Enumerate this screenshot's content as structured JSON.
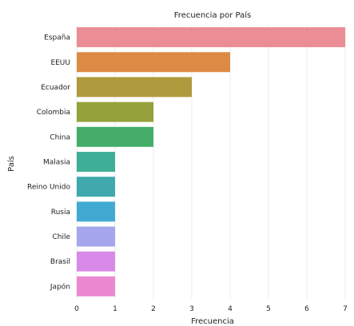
{
  "chart_data": {
    "type": "bar",
    "orientation": "horizontal",
    "title": "Frecuencia por País",
    "xlabel": "Frecuencia",
    "ylabel": "País",
    "xlim": [
      0,
      7
    ],
    "xticks": [
      "0",
      "1",
      "2",
      "3",
      "4",
      "5",
      "6",
      "7"
    ],
    "grid": "vertical",
    "categories": [
      "España",
      "EEUU",
      "Ecuador",
      "Colombia",
      "China",
      "Malasia",
      "Reino Unido",
      "Rusia",
      "Chile",
      "Brasil",
      "Japón"
    ],
    "values": [
      7,
      4,
      3,
      2,
      2,
      1,
      1,
      1,
      1,
      1,
      1
    ],
    "colors": [
      "#ea8d95",
      "#dd8a45",
      "#b09a3e",
      "#95a23b",
      "#44ad6a",
      "#3fae96",
      "#3fa9ad",
      "#41aad3",
      "#a6a6ee",
      "#d98ae8",
      "#ec88cf"
    ]
  }
}
